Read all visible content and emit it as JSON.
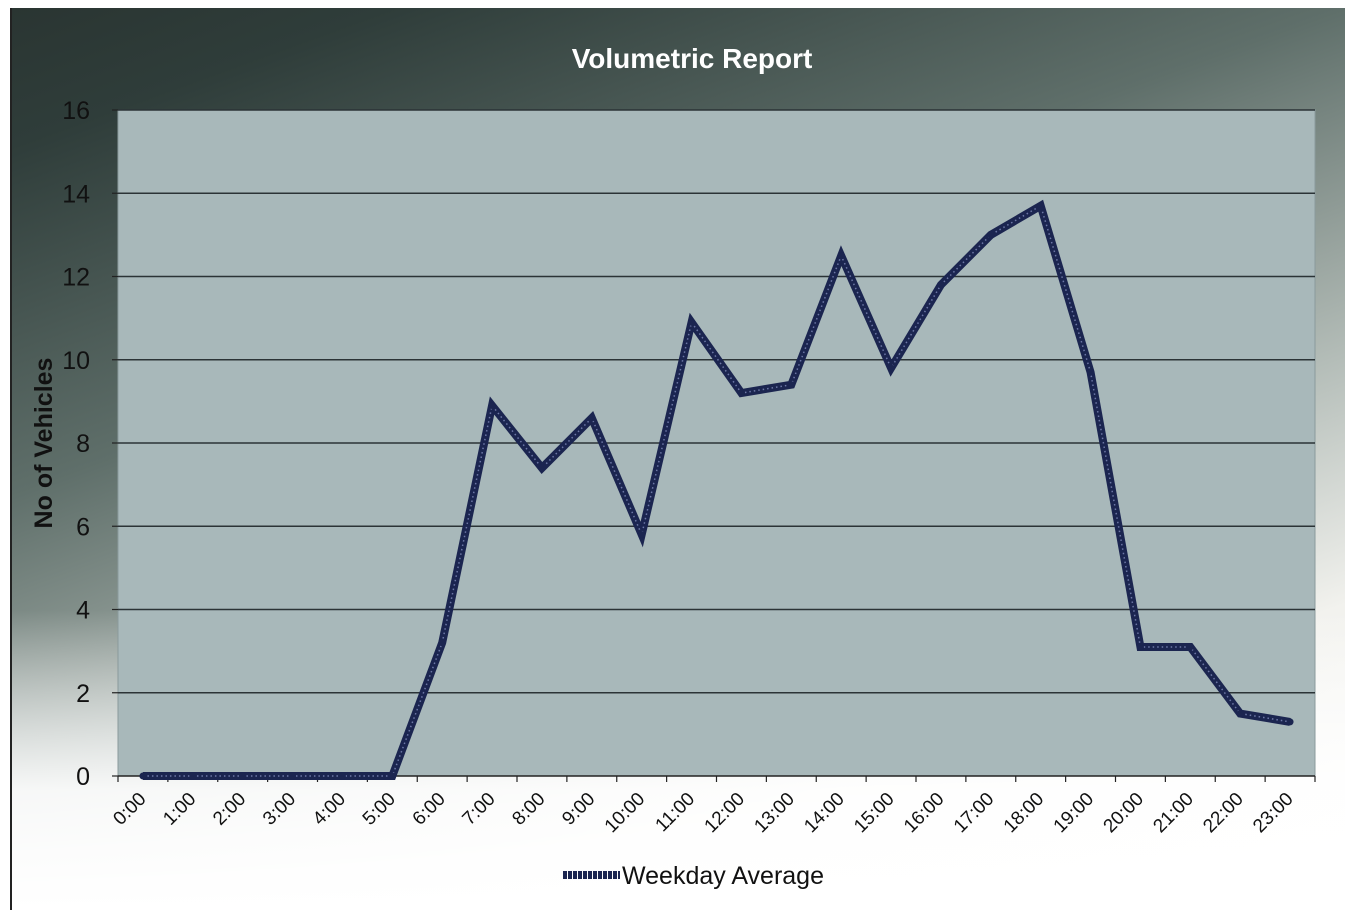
{
  "chart_data": {
    "type": "line",
    "title": "Volumetric Report",
    "xlabel": "",
    "ylabel": "No of Vehicles",
    "ylim": [
      0,
      16
    ],
    "yticks": [
      0,
      2,
      4,
      6,
      8,
      10,
      12,
      14,
      16
    ],
    "grid": true,
    "legend_position": "bottom",
    "categories": [
      "0:00",
      "1:00",
      "2:00",
      "3:00",
      "4:00",
      "5:00",
      "6:00",
      "7:00",
      "8:00",
      "9:00",
      "10:00",
      "11:00",
      "12:00",
      "13:00",
      "14:00",
      "15:00",
      "16:00",
      "17:00",
      "18:00",
      "19:00",
      "20:00",
      "21:00",
      "22:00",
      "23:00"
    ],
    "series": [
      {
        "name": "Weekday Average",
        "color": "#1b2550",
        "values": [
          0,
          0,
          0,
          0,
          0,
          0,
          3.2,
          8.9,
          7.4,
          8.6,
          5.8,
          10.9,
          9.2,
          9.4,
          12.5,
          9.8,
          11.8,
          13.0,
          13.7,
          9.7,
          3.1,
          3.1,
          1.5,
          1.3
        ]
      }
    ]
  }
}
